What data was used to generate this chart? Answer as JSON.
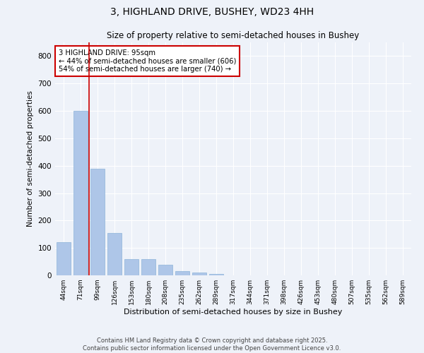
{
  "title1": "3, HIGHLAND DRIVE, BUSHEY, WD23 4HH",
  "title2": "Size of property relative to semi-detached houses in Bushey",
  "xlabel": "Distribution of semi-detached houses by size in Bushey",
  "ylabel": "Number of semi-detached properties",
  "categories": [
    "44sqm",
    "71sqm",
    "99sqm",
    "126sqm",
    "153sqm",
    "180sqm",
    "208sqm",
    "235sqm",
    "262sqm",
    "289sqm",
    "317sqm",
    "344sqm",
    "371sqm",
    "398sqm",
    "426sqm",
    "453sqm",
    "480sqm",
    "507sqm",
    "535sqm",
    "562sqm",
    "589sqm"
  ],
  "values": [
    120,
    600,
    390,
    155,
    60,
    60,
    38,
    15,
    10,
    5,
    0,
    0,
    0,
    0,
    0,
    0,
    0,
    0,
    0,
    0,
    0
  ],
  "bar_color": "#aec6e8",
  "bar_edge_color": "#8db4d8",
  "red_line_color": "#cc0000",
  "annotation_box_color": "#cc0000",
  "background_color": "#eef2f9",
  "plot_bg_color": "#eef2f9",
  "ylim": [
    0,
    850
  ],
  "yticks": [
    0,
    100,
    200,
    300,
    400,
    500,
    600,
    700,
    800
  ],
  "grid_color": "#ffffff",
  "annotation_text": "3 HIGHLAND DRIVE: 95sqm\n← 44% of semi-detached houses are smaller (606)\n54% of semi-detached houses are larger (740) →",
  "footer_line1": "Contains HM Land Registry data © Crown copyright and database right 2025.",
  "footer_line2": "Contains public sector information licensed under the Open Government Licence v3.0."
}
